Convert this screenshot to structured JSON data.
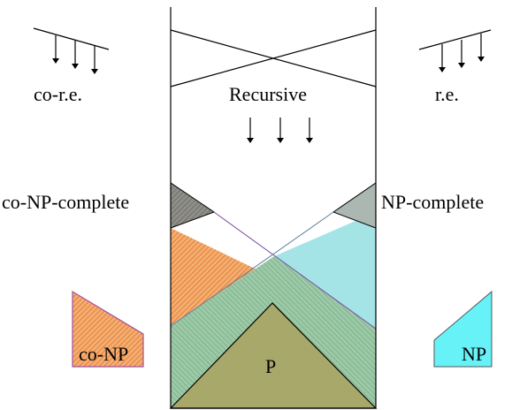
{
  "labels": {
    "co_re": "co-r.e.",
    "recursive": "Recursive",
    "re": "r.e.",
    "co_np_complete": "co-NP-complete",
    "np_complete": "NP-complete",
    "co_np": "co-NP",
    "np": "NP",
    "p": "P"
  },
  "colors": {
    "co_np_hatch": "#f4a261",
    "co_np_hatch_line": "#d9534f",
    "np_fill": "#9fe3e6",
    "np_legend_fill": "#66f2f7",
    "overlap_green": "#8dbf9a",
    "p_fill": "#a8a86a",
    "co_np_complete_fill": "#8c8c84",
    "np_complete_fill": "#aab8b1",
    "border": "#000000"
  }
}
